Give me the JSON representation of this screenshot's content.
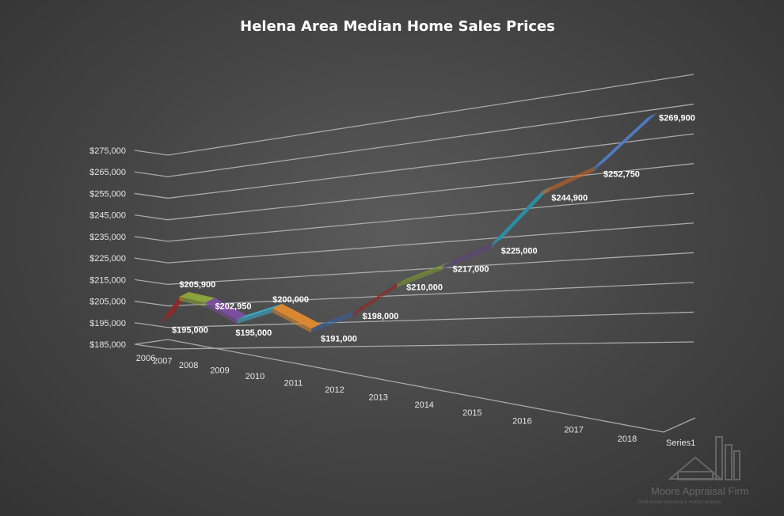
{
  "chart_data": {
    "type": "line",
    "title": "Helena Area Median Home Sales Prices",
    "x": [
      "2006",
      "2007",
      "2008",
      "2009",
      "2010",
      "2011",
      "2012",
      "2013",
      "2014",
      "2015",
      "2016",
      "2017",
      "2018"
    ],
    "series": [
      {
        "name": "Series1",
        "values": [
          195000,
          205900,
          202950,
          195000,
          200000,
          191000,
          198000,
          210000,
          217000,
          225000,
          244900,
          252750,
          269900
        ],
        "labels": [
          "$195,000",
          "$205,900",
          "$202,950",
          "$195,000",
          "$200,000",
          "$191,000",
          "$198,000",
          "$210,000",
          "$217,000",
          "$225,000",
          "$244,900",
          "$252,750",
          "$269,900"
        ]
      }
    ],
    "y_ticks": [
      "$185,000",
      "$195,000",
      "$205,000",
      "$215,000",
      "$225,000",
      "$235,000",
      "$245,000",
      "$255,000",
      "$265,000",
      "$275,000"
    ],
    "ylim": [
      185000,
      275000
    ],
    "grid": true,
    "legend": "none",
    "style": "3d-line",
    "colors": [
      "#8e2a2a",
      "#8ea83a",
      "#7b4ea0",
      "#3ab1cf",
      "#e08a2e",
      "#3b5f9c",
      "#8e2a2a",
      "#7a9a30",
      "#5e3f85",
      "#2b8fa8",
      "#d2661f",
      "#4f7cc3"
    ]
  },
  "watermark": {
    "name": "Moore Appraisal Firm",
    "tagline": "Real estate appraisal & market analysis",
    "icon": "house-icon"
  }
}
